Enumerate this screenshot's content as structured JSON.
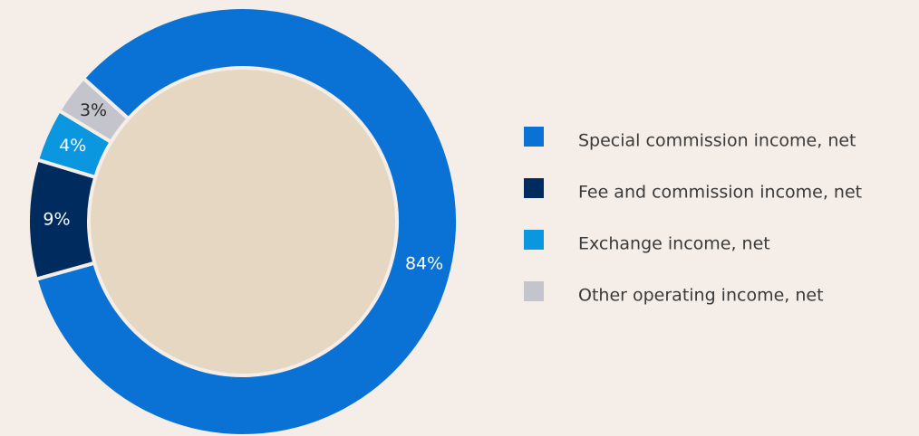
{
  "chart_data": {
    "type": "donut",
    "categories": [
      "Special commission income, net",
      "Fee and commission income, net",
      "Exchange income, net",
      "Other operating income, net"
    ],
    "values": [
      84,
      9,
      4,
      3
    ],
    "value_labels": [
      "84%",
      "9%",
      "4%",
      "3%"
    ],
    "colors": [
      "#0a72d4",
      "#002b5e",
      "#0a97e0",
      "#c4c4cc"
    ],
    "label_colors": [
      "#ffffff",
      "#ffffff",
      "#ffffff",
      "#2b2b2b"
    ],
    "legend": "right"
  }
}
